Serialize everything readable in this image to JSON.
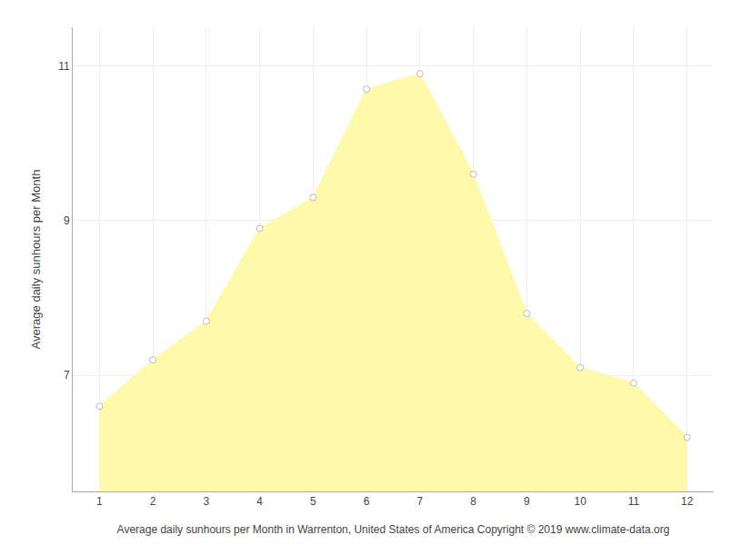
{
  "chart_data": {
    "type": "area",
    "x": [
      1,
      2,
      3,
      4,
      5,
      6,
      7,
      8,
      9,
      10,
      11,
      12
    ],
    "values": [
      6.6,
      7.2,
      7.7,
      8.9,
      9.3,
      10.7,
      10.9,
      9.6,
      7.8,
      7.1,
      6.9,
      6.2
    ],
    "color": "#FFFAAA",
    "marker": "circle",
    "xlabel": "Average daily sunhours per Month in Warrenton, United States of America Copyright © 2019 www.climate-data.org",
    "ylabel": "Average daily sunhours per Month",
    "xlim": [
      0.5,
      12.5
    ],
    "ylim": [
      5.5,
      11.5
    ],
    "xticks": [
      1,
      2,
      3,
      4,
      5,
      6,
      7,
      8,
      9,
      10,
      11,
      12
    ],
    "yticks": [
      7,
      9,
      11
    ],
    "grid": true
  }
}
